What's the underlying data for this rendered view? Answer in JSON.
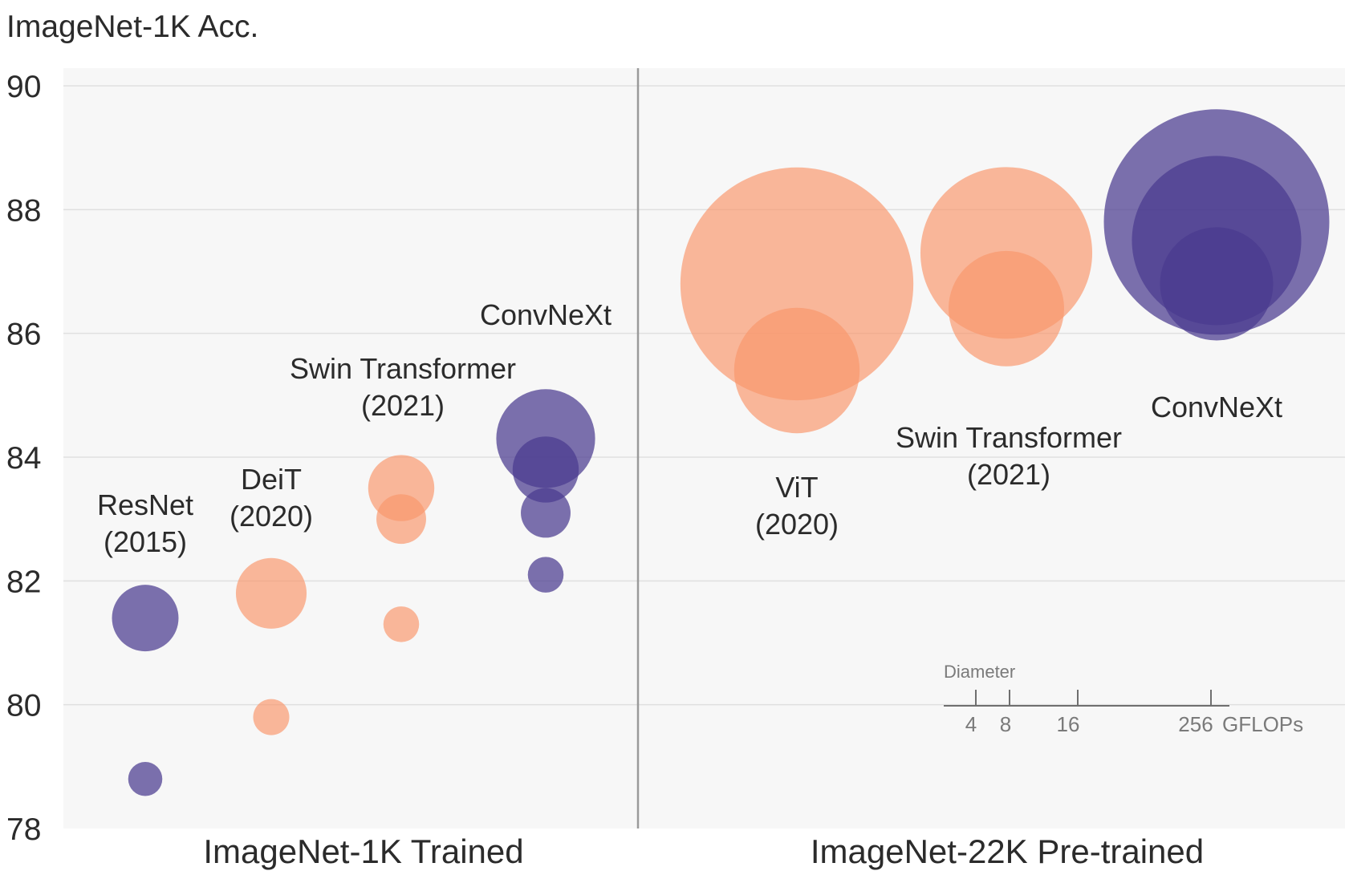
{
  "chart_data": {
    "type": "scatter",
    "ylabel": "ImageNet-1K Acc.",
    "ylim": [
      78,
      90
    ],
    "yticks": [
      78,
      80,
      82,
      84,
      86,
      88,
      90
    ],
    "grid": true,
    "panels": [
      "ImageNet-1K Trained",
      "ImageNet-22K Pre-trained"
    ],
    "colors": {
      "convnext": "#4a3a8f",
      "transformer": "#f9966b",
      "background": "#f7f7f7"
    },
    "groups": [
      {
        "panel": 0,
        "name": "ResNet",
        "year": "(2015)",
        "family": "convnext"
      },
      {
        "panel": 0,
        "name": "DeiT",
        "year": "(2020)",
        "family": "transformer"
      },
      {
        "panel": 0,
        "name": "Swin Transformer",
        "year": "(2021)",
        "family": "transformer"
      },
      {
        "panel": 0,
        "name": "ConvNeXt",
        "year": "",
        "family": "convnext"
      },
      {
        "panel": 1,
        "name": "ViT",
        "year": "(2020)",
        "family": "transformer"
      },
      {
        "panel": 1,
        "name": "Swin Transformer",
        "year": "(2021)",
        "family": "transformer"
      },
      {
        "panel": 1,
        "name": "ConvNeXt",
        "year": "",
        "family": "convnext"
      }
    ],
    "points": [
      {
        "group": 0,
        "y": 78.8,
        "gflops": 4.1
      },
      {
        "group": 0,
        "y": 81.4,
        "gflops": 15.6
      },
      {
        "group": 1,
        "y": 79.8,
        "gflops": 4.6
      },
      {
        "group": 1,
        "y": 81.8,
        "gflops": 17.6
      },
      {
        "group": 2,
        "y": 81.3,
        "gflops": 4.5
      },
      {
        "group": 2,
        "y": 83.0,
        "gflops": 8.7
      },
      {
        "group": 2,
        "y": 83.5,
        "gflops": 15.4
      },
      {
        "group": 3,
        "y": 82.1,
        "gflops": 4.5
      },
      {
        "group": 3,
        "y": 83.1,
        "gflops": 8.7
      },
      {
        "group": 3,
        "y": 83.8,
        "gflops": 15.4
      },
      {
        "group": 3,
        "y": 84.3,
        "gflops": 34.4
      },
      {
        "group": 4,
        "y": 85.4,
        "gflops": 55.5
      },
      {
        "group": 4,
        "y": 86.8,
        "gflops": 191.1
      },
      {
        "group": 5,
        "y": 86.4,
        "gflops": 47.0
      },
      {
        "group": 5,
        "y": 87.3,
        "gflops": 103.9
      },
      {
        "group": 6,
        "y": 86.8,
        "gflops": 45.1
      },
      {
        "group": 6,
        "y": 87.5,
        "gflops": 101.0
      },
      {
        "group": 6,
        "y": 87.8,
        "gflops": 179.0
      }
    ],
    "legend": {
      "title": "Diameter",
      "ticks": [
        "4",
        "8",
        "16",
        "256"
      ],
      "unit": "GFLOPs"
    }
  }
}
